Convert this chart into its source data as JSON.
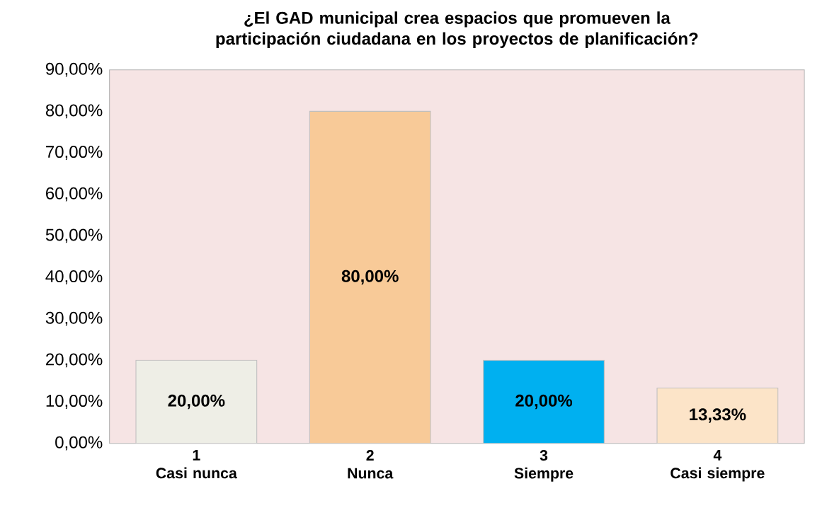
{
  "chart_data": {
    "type": "bar",
    "title": "¿El GAD municipal crea espacios que promueven la participación ciudadana en los proyectos de planificación?",
    "categories": [
      "1\nCasi nunca",
      "2\nNunca",
      "3\nSiempre",
      "4\nCasi siempre"
    ],
    "values": [
      20,
      80,
      20,
      13.33
    ],
    "colors": [
      "#eeeee6",
      "#f8ca98",
      "#00b0f0",
      "#fce4c8"
    ],
    "value_labels": [
      "20,00%",
      "80,00%",
      "20,00%",
      "13,33%"
    ],
    "ylim": [
      0,
      90
    ],
    "yticks": [
      {
        "value": 0,
        "label": "0,00%"
      },
      {
        "value": 10,
        "label": "10,00%"
      },
      {
        "value": 20,
        "label": "20,00%"
      },
      {
        "value": 30,
        "label": "30,00%"
      },
      {
        "value": 40,
        "label": "40,00%"
      },
      {
        "value": 50,
        "label": "50,00%"
      },
      {
        "value": 60,
        "label": "60,00%"
      },
      {
        "value": 70,
        "label": "70,00%"
      },
      {
        "value": 80,
        "label": "80,00%"
      },
      {
        "value": 90,
        "label": "90,00%"
      }
    ],
    "grid": false
  }
}
